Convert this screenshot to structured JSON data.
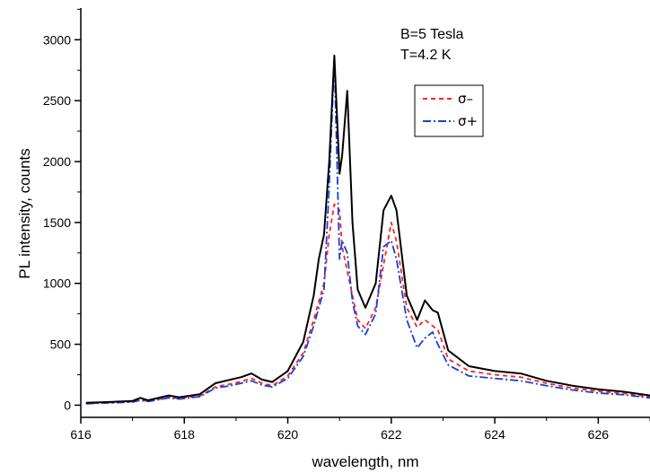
{
  "chart_data": {
    "type": "line",
    "title": "",
    "xlabel": "wavelength, nm",
    "ylabel": "PL intensity, counts",
    "xlim": [
      616,
      627
    ],
    "ylim": [
      -100,
      3260
    ],
    "x_ticks": [
      616,
      618,
      620,
      622,
      624,
      626
    ],
    "y_ticks": [
      0,
      500,
      1000,
      1500,
      2000,
      2500,
      3000
    ],
    "grid": false,
    "annotations": [
      "B=5 Tesla",
      "T=4.2 K"
    ],
    "legend_position": "upper-right",
    "legend": [
      "σ–",
      "σ+"
    ],
    "series": [
      {
        "name": "",
        "color": "#000000",
        "style": "solid",
        "x": [
          616.1,
          616.5,
          617.0,
          617.15,
          617.3,
          617.7,
          617.9,
          618.3,
          618.6,
          618.9,
          619.1,
          619.3,
          619.5,
          619.7,
          620.0,
          620.3,
          620.5,
          620.6,
          620.7,
          620.8,
          620.9,
          621.0,
          621.05,
          621.15,
          621.25,
          621.35,
          621.5,
          621.7,
          621.85,
          622.0,
          622.1,
          622.3,
          622.5,
          622.65,
          622.8,
          622.9,
          623.1,
          623.5,
          624.0,
          624.5,
          625.0,
          625.5,
          626.0,
          626.5,
          627.0
        ],
        "y": [
          20,
          25,
          35,
          60,
          40,
          80,
          65,
          90,
          180,
          210,
          230,
          260,
          210,
          190,
          280,
          520,
          900,
          1200,
          1400,
          2000,
          2870,
          1900,
          2050,
          2580,
          1500,
          950,
          800,
          1000,
          1600,
          1720,
          1600,
          900,
          700,
          860,
          780,
          760,
          450,
          320,
          280,
          260,
          200,
          160,
          130,
          110,
          80
        ]
      },
      {
        "name": "σ–",
        "color": "#ff2020",
        "style": "dashed",
        "x": [
          616.1,
          616.5,
          617.0,
          617.15,
          617.3,
          617.7,
          617.9,
          618.3,
          618.6,
          618.9,
          619.1,
          619.3,
          619.5,
          619.7,
          620.0,
          620.3,
          620.5,
          620.6,
          620.7,
          620.8,
          620.9,
          621.0,
          621.05,
          621.15,
          621.25,
          621.35,
          621.5,
          621.7,
          621.85,
          622.0,
          622.1,
          622.3,
          622.5,
          622.65,
          622.8,
          622.9,
          623.1,
          623.5,
          624.0,
          624.5,
          625.0,
          625.5,
          626.0,
          626.5,
          627.0
        ],
        "y": [
          15,
          20,
          28,
          45,
          32,
          65,
          55,
          75,
          150,
          175,
          195,
          220,
          180,
          160,
          240,
          430,
          700,
          850,
          1000,
          1400,
          1650,
          1600,
          1300,
          1100,
          900,
          700,
          630,
          800,
          1150,
          1500,
          1350,
          800,
          640,
          700,
          650,
          620,
          380,
          280,
          250,
          230,
          180,
          140,
          115,
          95,
          70
        ]
      },
      {
        "name": "σ+",
        "color": "#1a3fd8",
        "style": "dashdot",
        "x": [
          616.1,
          616.5,
          617.0,
          617.15,
          617.3,
          617.7,
          617.9,
          618.3,
          618.6,
          618.9,
          619.1,
          619.3,
          619.5,
          619.7,
          620.0,
          620.3,
          620.5,
          620.6,
          620.7,
          620.8,
          620.9,
          621.0,
          621.05,
          621.15,
          621.25,
          621.35,
          621.5,
          621.7,
          621.85,
          622.0,
          622.1,
          622.3,
          622.5,
          622.65,
          622.8,
          622.9,
          623.1,
          623.5,
          624.0,
          624.5,
          625.0,
          625.5,
          626.0,
          626.5,
          627.0
        ],
        "y": [
          12,
          18,
          25,
          40,
          30,
          60,
          50,
          70,
          140,
          160,
          180,
          200,
          165,
          150,
          220,
          400,
          650,
          800,
          950,
          1800,
          2850,
          1200,
          1350,
          1250,
          850,
          650,
          580,
          750,
          1300,
          1350,
          1200,
          700,
          470,
          550,
          600,
          500,
          330,
          240,
          220,
          200,
          160,
          125,
          100,
          85,
          60
        ]
      }
    ]
  }
}
